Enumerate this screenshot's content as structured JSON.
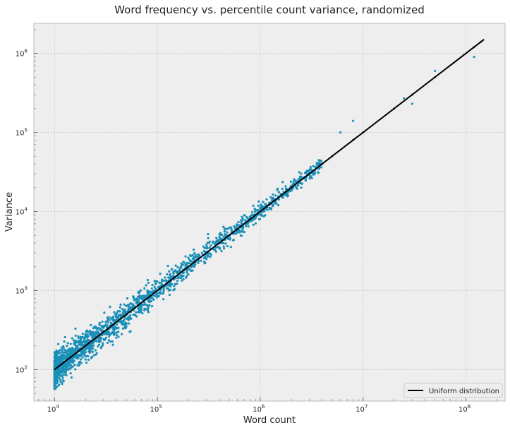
{
  "chart_data": {
    "type": "scatter",
    "title": "Word frequency vs. percentile count variance, randomized",
    "xlabel": "Word count",
    "ylabel": "Variance",
    "x_scale": "log",
    "y_scale": "log",
    "xlim": [
      6300,
      240000000
    ],
    "ylim": [
      40,
      2400000
    ],
    "x_ticks": [
      {
        "value": 10000,
        "base": "10",
        "exp": "4"
      },
      {
        "value": 100000,
        "base": "10",
        "exp": "5"
      },
      {
        "value": 1000000,
        "base": "10",
        "exp": "6"
      },
      {
        "value": 10000000,
        "base": "10",
        "exp": "7"
      },
      {
        "value": 100000000,
        "base": "10",
        "exp": "8"
      }
    ],
    "y_ticks": [
      {
        "value": 100,
        "base": "10",
        "exp": "2"
      },
      {
        "value": 1000,
        "base": "10",
        "exp": "3"
      },
      {
        "value": 10000,
        "base": "10",
        "exp": "4"
      },
      {
        "value": 100000,
        "base": "10",
        "exp": "5"
      },
      {
        "value": 1000000,
        "base": "10",
        "exp": "6"
      }
    ],
    "grid": true,
    "legend_position": "bottom-right",
    "series": [
      {
        "kind": "scatter",
        "color": "#1a8fb8",
        "points": [
          [
            10000,
            75
          ],
          [
            10000,
            130
          ],
          [
            11000,
            120
          ],
          [
            12000,
            95
          ],
          [
            13000,
            170
          ],
          [
            15000,
            150
          ],
          [
            20000,
            180
          ],
          [
            20000,
            260
          ],
          [
            30000,
            300
          ],
          [
            50000,
            500
          ],
          [
            100000,
            1000
          ],
          [
            200000,
            2000
          ],
          [
            300000,
            2900
          ],
          [
            500000,
            5000
          ],
          [
            1000000,
            10000
          ],
          [
            2000000,
            20000
          ],
          [
            3000000,
            30000
          ],
          [
            5000000,
            50000
          ],
          [
            10000000,
            100000
          ],
          [
            20000000,
            200000
          ],
          [
            30000000,
            300000
          ],
          [
            50000000,
            500000
          ],
          [
            120000000,
            1200000
          ],
          [
            140000000,
            1400000
          ],
          [
            120000000,
            900000
          ],
          [
            50000000,
            600000
          ],
          [
            30000000,
            230000
          ],
          [
            25000000,
            270000
          ],
          [
            8000000,
            140000
          ],
          [
            8000000,
            80000
          ],
          [
            6000000,
            100000
          ],
          [
            4000000,
            40000
          ],
          [
            3500000,
            35000
          ],
          [
            2500000,
            30000
          ],
          [
            2500000,
            20000
          ],
          [
            1500000,
            15000
          ],
          [
            1500000,
            12000
          ],
          [
            900000,
            10500
          ],
          [
            850000,
            9000
          ],
          [
            700000,
            5500
          ],
          [
            700000,
            7000
          ],
          [
            450000,
            6000
          ],
          [
            400000,
            3500
          ],
          [
            300000,
            3800
          ],
          [
            300000,
            2500
          ],
          [
            200000,
            2600
          ],
          [
            200000,
            1600
          ],
          [
            150000,
            1800
          ],
          [
            130000,
            1000
          ],
          [
            100000,
            1300
          ],
          [
            80000,
            1000
          ],
          [
            80000,
            650
          ],
          [
            60000,
            750
          ],
          [
            50000,
            350
          ],
          [
            40000,
            500
          ],
          [
            35000,
            280
          ],
          [
            25000,
            350
          ],
          [
            22000,
            200
          ],
          [
            18000,
            220
          ],
          [
            17000,
            140
          ]
        ]
      },
      {
        "kind": "line",
        "name": "Uniform distribution",
        "color": "#000000",
        "x": [
          10000,
          150000000
        ],
        "y": [
          100,
          1500000
        ]
      }
    ]
  }
}
